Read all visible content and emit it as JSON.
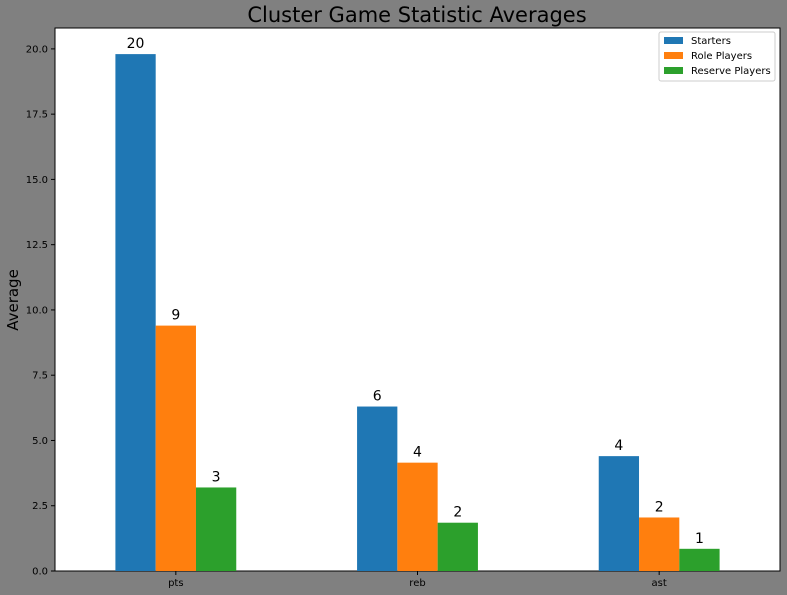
{
  "chart_data": {
    "type": "bar",
    "title": "Cluster Game Statistic Averages",
    "xlabel": "",
    "ylabel": "Average",
    "categories": [
      "pts",
      "reb",
      "ast"
    ],
    "series": [
      {
        "name": "Starters",
        "color": "#1f77b4",
        "values": [
          19.8,
          6.3,
          4.4
        ],
        "labels": [
          "20",
          "6",
          "4"
        ]
      },
      {
        "name": "Role Players",
        "color": "#ff7f0e",
        "values": [
          9.4,
          4.15,
          2.05
        ],
        "labels": [
          "9",
          "4",
          "2"
        ]
      },
      {
        "name": "Reserve Players",
        "color": "#2ca02c",
        "values": [
          3.2,
          1.85,
          0.85
        ],
        "labels": [
          "3",
          "2",
          "1"
        ]
      }
    ],
    "ylim": [
      0,
      20.8
    ],
    "yticks": [
      "0.0",
      "2.5",
      "5.0",
      "7.5",
      "10.0",
      "12.5",
      "15.0",
      "17.5",
      "20.0"
    ],
    "grid": false,
    "legend_position": "top-right",
    "background": "#808080",
    "plot_background": "#ffffff"
  }
}
